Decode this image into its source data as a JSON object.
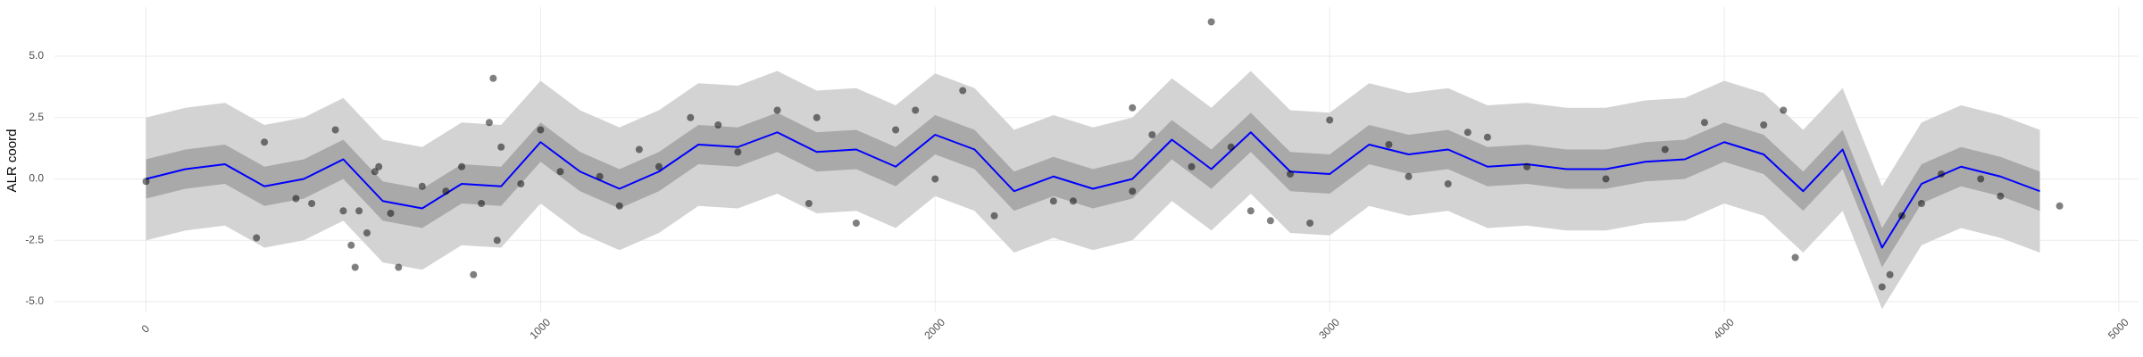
{
  "chart_data": {
    "type": "line",
    "y_label": "ALR coord",
    "xlim": [
      -232,
      5050
    ],
    "ylim": [
      -5.4,
      7.0
    ],
    "xticks": [
      0,
      1000,
      2000,
      3000,
      4000,
      5000
    ],
    "yticks": [
      {
        "value": -5,
        "label": "-5.0"
      },
      {
        "value": -2.5,
        "label": "-2.5"
      },
      {
        "value": 0,
        "label": "0.0"
      },
      {
        "value": 2.5,
        "label": "2.5"
      },
      {
        "value": 5,
        "label": "5.0"
      }
    ],
    "grid": true,
    "x": [
      0,
      100,
      200,
      300,
      400,
      500,
      600,
      700,
      800,
      900,
      1000,
      1100,
      1200,
      1300,
      1400,
      1500,
      1600,
      1700,
      1800,
      1900,
      2000,
      2100,
      2200,
      2300,
      2400,
      2500,
      2600,
      2700,
      2800,
      2900,
      3000,
      3100,
      3200,
      3300,
      3400,
      3500,
      3600,
      3700,
      3800,
      3900,
      4000,
      4100,
      4200,
      4300,
      4400,
      4500,
      4600,
      4700,
      4800
    ],
    "series": [
      {
        "color": "#0000ff",
        "values": [
          0.0,
          0.4,
          0.6,
          -0.3,
          0.0,
          0.8,
          -0.9,
          -1.2,
          -0.2,
          -0.3,
          1.5,
          0.3,
          -0.4,
          0.3,
          1.4,
          1.3,
          1.9,
          1.1,
          1.2,
          0.5,
          1.8,
          1.2,
          -0.5,
          0.1,
          -0.4,
          0.0,
          1.6,
          0.4,
          1.9,
          0.3,
          0.2,
          1.4,
          1.0,
          1.2,
          0.5,
          0.6,
          0.4,
          0.4,
          0.7,
          0.8,
          1.5,
          1.0,
          -0.5,
          1.2,
          -2.8,
          -0.2,
          0.5,
          0.1,
          -0.5
        ]
      }
    ],
    "bands": [
      {
        "color": "#d3d3d3",
        "upper": [
          2.5,
          2.9,
          3.1,
          2.2,
          2.5,
          3.3,
          1.6,
          1.3,
          2.3,
          2.2,
          4.0,
          2.8,
          2.1,
          2.8,
          3.9,
          3.8,
          4.4,
          3.6,
          3.7,
          3.0,
          4.3,
          3.7,
          2.0,
          2.6,
          2.1,
          2.5,
          4.1,
          2.9,
          4.4,
          2.8,
          2.7,
          3.9,
          3.5,
          3.7,
          3.0,
          3.1,
          2.9,
          2.9,
          3.2,
          3.3,
          4.0,
          3.5,
          2.0,
          3.7,
          -0.3,
          2.3,
          3.0,
          2.6,
          2.0
        ],
        "lower": [
          -2.5,
          -2.1,
          -1.9,
          -2.8,
          -2.5,
          -1.7,
          -3.4,
          -3.7,
          -2.7,
          -2.8,
          -1.0,
          -2.2,
          -2.9,
          -2.2,
          -1.1,
          -1.2,
          -0.6,
          -1.4,
          -1.3,
          -2.0,
          -0.7,
          -1.3,
          -3.0,
          -2.4,
          -2.9,
          -2.5,
          -0.9,
          -2.1,
          -0.6,
          -2.2,
          -2.3,
          -1.1,
          -1.5,
          -1.3,
          -2.0,
          -1.9,
          -2.1,
          -2.1,
          -1.8,
          -1.7,
          -1.0,
          -1.5,
          -3.0,
          -1.3,
          -5.3,
          -2.7,
          -2.0,
          -2.4,
          -3.0
        ]
      },
      {
        "color": "#a9a9a9",
        "upper": [
          0.8,
          1.2,
          1.4,
          0.5,
          0.8,
          1.6,
          -0.1,
          -0.4,
          0.6,
          0.5,
          2.3,
          1.1,
          0.4,
          1.1,
          2.2,
          2.1,
          2.7,
          1.9,
          2.0,
          1.3,
          2.6,
          2.0,
          0.3,
          0.9,
          0.4,
          0.8,
          2.4,
          1.2,
          2.7,
          1.1,
          1.0,
          2.2,
          1.8,
          2.0,
          1.3,
          1.4,
          1.2,
          1.2,
          1.5,
          1.6,
          2.3,
          1.8,
          0.3,
          2.0,
          -2.0,
          0.6,
          1.3,
          0.9,
          0.3
        ],
        "lower": [
          -0.8,
          -0.4,
          -0.2,
          -1.1,
          -0.8,
          0.0,
          -1.7,
          -2.0,
          -1.0,
          -1.1,
          0.7,
          -0.5,
          -1.2,
          -0.5,
          0.6,
          0.5,
          1.1,
          0.3,
          0.4,
          -0.3,
          1.0,
          0.4,
          -1.3,
          -0.7,
          -1.2,
          -0.8,
          0.8,
          -0.4,
          1.1,
          -0.5,
          -0.6,
          0.6,
          0.2,
          0.4,
          -0.3,
          -0.2,
          -0.4,
          -0.4,
          -0.1,
          0.0,
          0.7,
          0.2,
          -1.3,
          0.4,
          -3.6,
          -1.0,
          -0.3,
          -0.7,
          -1.3
        ]
      }
    ],
    "points": {
      "color": "#000000",
      "x": [
        0,
        300,
        280,
        380,
        420,
        480,
        500,
        520,
        530,
        540,
        560,
        580,
        590,
        620,
        640,
        700,
        760,
        800,
        830,
        850,
        880,
        870,
        890,
        900,
        950,
        1000,
        1050,
        1150,
        1200,
        1250,
        1300,
        1380,
        1450,
        1500,
        1600,
        1680,
        1700,
        1800,
        1900,
        1950,
        2000,
        2070,
        2150,
        2300,
        2350,
        2500,
        2500,
        2550,
        2650,
        2700,
        2750,
        2800,
        2850,
        2900,
        2950,
        3000,
        3150,
        3200,
        3300,
        3350,
        3400,
        3500,
        3700,
        3850,
        3950,
        4100,
        4150,
        4180,
        4400,
        4420,
        4450,
        4500,
        4550,
        4650,
        4700,
        4850
      ],
      "y": [
        -0.1,
        1.5,
        -2.4,
        -0.8,
        -1.0,
        2.0,
        -1.3,
        -2.7,
        -3.6,
        -1.3,
        -2.2,
        0.3,
        0.5,
        -1.4,
        -3.6,
        -0.3,
        -0.5,
        0.5,
        -3.9,
        -1.0,
        4.1,
        2.3,
        -2.5,
        1.3,
        -0.2,
        2.0,
        0.3,
        0.1,
        -1.1,
        1.2,
        0.5,
        2.5,
        2.2,
        1.1,
        2.8,
        -1.0,
        2.5,
        -1.8,
        2.0,
        2.8,
        0.0,
        3.6,
        -1.5,
        -0.9,
        -0.9,
        2.9,
        -0.5,
        1.8,
        0.5,
        6.4,
        1.3,
        -1.3,
        -1.7,
        0.2,
        -1.8,
        2.4,
        1.4,
        0.1,
        -0.2,
        1.9,
        1.7,
        0.5,
        0.0,
        1.2,
        2.3,
        2.2,
        2.8,
        -3.2,
        -4.4,
        -3.9,
        -1.5,
        -1.0,
        0.2,
        0.0,
        -0.7,
        -1.1
      ]
    }
  }
}
